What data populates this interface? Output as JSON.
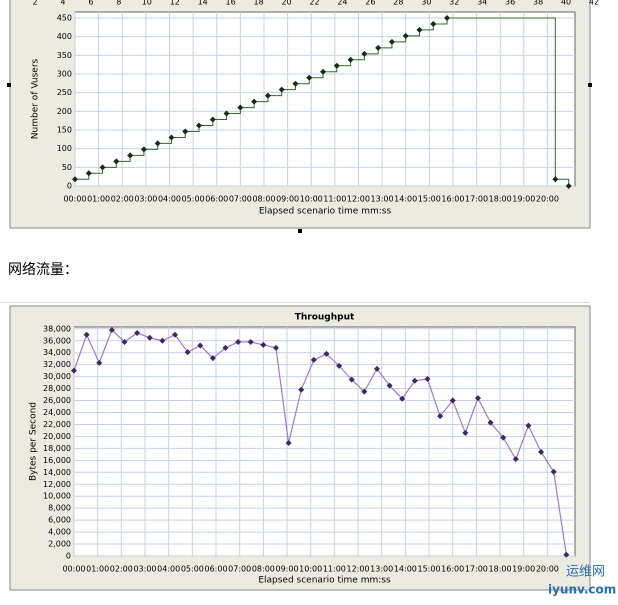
{
  "ruler": [
    2,
    4,
    6,
    8,
    10,
    12,
    14,
    16,
    18,
    20,
    22,
    24,
    26,
    28,
    30,
    32,
    34,
    36,
    38,
    40,
    42
  ],
  "caption": "网络流量：",
  "watermark": {
    "name": "运维网",
    "site": "iyunv.com"
  },
  "chart_data": [
    {
      "type": "line",
      "step": true,
      "xlabel": "Elapsed scenario time mm:ss",
      "ylabel": "Number of Vusers",
      "xlim": [
        0,
        1270
      ],
      "ylim": [
        0,
        466
      ],
      "grid": true,
      "xticks": [
        {
          "value": 0,
          "label": "00:00"
        },
        {
          "value": 60,
          "label": "01:00"
        },
        {
          "value": 120,
          "label": "02:00"
        },
        {
          "value": 180,
          "label": "03:00"
        },
        {
          "value": 240,
          "label": "04:00"
        },
        {
          "value": 300,
          "label": "05:00"
        },
        {
          "value": 360,
          "label": "06:00"
        },
        {
          "value": 420,
          "label": "07:00"
        },
        {
          "value": 480,
          "label": "08:00"
        },
        {
          "value": 540,
          "label": "09:00"
        },
        {
          "value": 600,
          "label": "10:00"
        },
        {
          "value": 660,
          "label": "11:00"
        },
        {
          "value": 720,
          "label": "12:00"
        },
        {
          "value": 780,
          "label": "13:00"
        },
        {
          "value": 840,
          "label": "14:00"
        },
        {
          "value": 900,
          "label": "15:00"
        },
        {
          "value": 960,
          "label": "16:00"
        },
        {
          "value": 1020,
          "label": "17:00"
        },
        {
          "value": 1080,
          "label": "18:00"
        },
        {
          "value": 1140,
          "label": "19:00"
        },
        {
          "value": 1200,
          "label": "20:00"
        }
      ],
      "yticks": [
        0,
        50,
        100,
        150,
        200,
        250,
        300,
        350,
        400,
        450
      ],
      "x": [
        0,
        35,
        70,
        105,
        140,
        175,
        210,
        245,
        280,
        315,
        350,
        385,
        420,
        455,
        490,
        525,
        560,
        595,
        630,
        665,
        700,
        735,
        770,
        805,
        840,
        875,
        910,
        945,
        1220,
        1254
      ],
      "series": [
        {
          "color": "#2f6b2f",
          "marker_color": "#1a2a1a",
          "values": [
            18,
            34,
            50,
            66,
            82,
            98,
            114,
            130,
            146,
            162,
            178,
            194,
            210,
            226,
            242,
            258,
            274,
            290,
            306,
            322,
            338,
            354,
            370,
            386,
            402,
            418,
            434,
            450,
            18,
            0
          ]
        }
      ]
    },
    {
      "type": "line",
      "title": "Throughput",
      "xlabel": "Elapsed scenario time mm:ss",
      "ylabel": "Bytes per Second",
      "xlim": [
        0,
        1270
      ],
      "ylim": [
        0,
        38300
      ],
      "grid": true,
      "xticks": [
        {
          "value": 0,
          "label": "00:00"
        },
        {
          "value": 60,
          "label": "01:00"
        },
        {
          "value": 120,
          "label": "02:00"
        },
        {
          "value": 180,
          "label": "03:00"
        },
        {
          "value": 240,
          "label": "04:00"
        },
        {
          "value": 300,
          "label": "05:00"
        },
        {
          "value": 360,
          "label": "06:00"
        },
        {
          "value": 420,
          "label": "07:00"
        },
        {
          "value": 480,
          "label": "08:00"
        },
        {
          "value": 540,
          "label": "09:00"
        },
        {
          "value": 600,
          "label": "10:00"
        },
        {
          "value": 660,
          "label": "11:00"
        },
        {
          "value": 720,
          "label": "12:00"
        },
        {
          "value": 780,
          "label": "13:00"
        },
        {
          "value": 840,
          "label": "14:00"
        },
        {
          "value": 900,
          "label": "15:00"
        },
        {
          "value": 960,
          "label": "16:00"
        },
        {
          "value": 1020,
          "label": "17:00"
        },
        {
          "value": 1080,
          "label": "18:00"
        },
        {
          "value": 1140,
          "label": "19:00"
        },
        {
          "value": 1200,
          "label": "20:00"
        }
      ],
      "yticks": [
        0,
        {
          "value": 2000,
          "label": "2,000"
        },
        {
          "value": 4000,
          "label": "4,000"
        },
        {
          "value": 6000,
          "label": "6,000"
        },
        {
          "value": 8000,
          "label": "8,000"
        },
        {
          "value": 10000,
          "label": "10,000"
        },
        {
          "value": 12000,
          "label": "12,000"
        },
        {
          "value": 14000,
          "label": "14,000"
        },
        {
          "value": 16000,
          "label": "16,000"
        },
        {
          "value": 18000,
          "label": "18,000"
        },
        {
          "value": 20000,
          "label": "20,000"
        },
        {
          "value": 22000,
          "label": "22,000"
        },
        {
          "value": 24000,
          "label": "24,000"
        },
        {
          "value": 26000,
          "label": "26,000"
        },
        {
          "value": 28000,
          "label": "28,000"
        },
        {
          "value": 30000,
          "label": "30,000"
        },
        {
          "value": 32000,
          "label": "32,000"
        },
        {
          "value": 34000,
          "label": "34,000"
        },
        {
          "value": 36000,
          "label": "36,000"
        },
        {
          "value": 38000,
          "label": "38,000"
        }
      ],
      "x": [
        0,
        32,
        64,
        96,
        128,
        160,
        192,
        224,
        256,
        288,
        320,
        352,
        384,
        416,
        448,
        480,
        512,
        544,
        576,
        608,
        640,
        672,
        704,
        736,
        768,
        800,
        832,
        864,
        896,
        928,
        960,
        992,
        1024,
        1056,
        1088,
        1120,
        1152,
        1184,
        1216,
        1248
      ],
      "series": [
        {
          "color": "#a07ad0",
          "marker_color": "#3d2a5c",
          "values": [
            31000,
            37000,
            32300,
            37800,
            35800,
            37300,
            36500,
            36000,
            37000,
            34100,
            35200,
            33100,
            34800,
            35800,
            35800,
            35300,
            34800,
            18900,
            27800,
            32800,
            33800,
            31800,
            29500,
            27500,
            31300,
            28500,
            26300,
            29300,
            29600,
            23400,
            26000,
            20600,
            26400,
            22300,
            19800,
            16200,
            21800,
            17400,
            14100,
            200
          ]
        }
      ]
    }
  ]
}
